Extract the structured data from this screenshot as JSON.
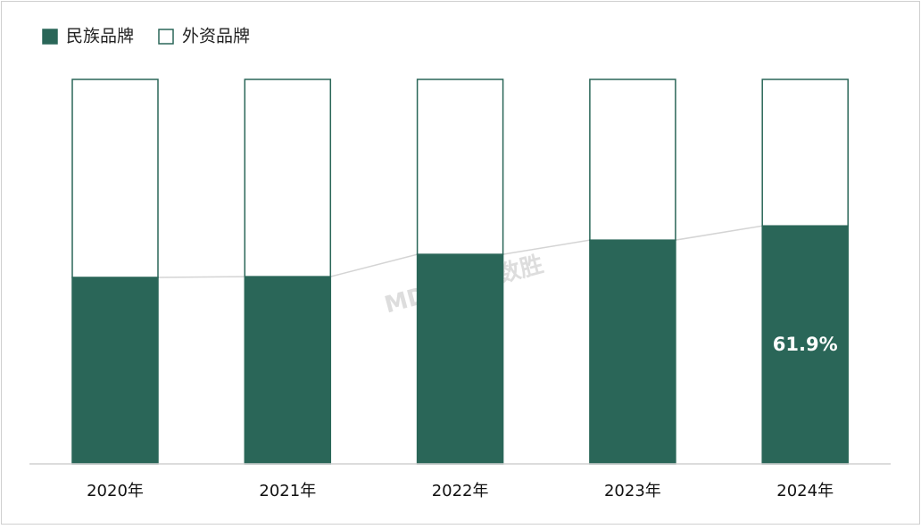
{
  "chart_data": {
    "type": "stacked_bar",
    "categories": [
      "2020年",
      "2021年",
      "2022年",
      "2023年",
      "2024年"
    ],
    "series": [
      {
        "name": "民族品牌",
        "color": "#2a6658",
        "values": [
          48.5,
          48.7,
          54.5,
          58.2,
          61.9
        ],
        "value_labels": [
          null,
          null,
          null,
          null,
          "61.9%"
        ]
      },
      {
        "name": "外资品牌",
        "color": "#ffffff",
        "values": [
          51.5,
          51.3,
          45.5,
          41.8,
          38.1
        ]
      }
    ],
    "ylim": [
      0,
      100
    ],
    "watermark": "MDDI医装数胜"
  }
}
